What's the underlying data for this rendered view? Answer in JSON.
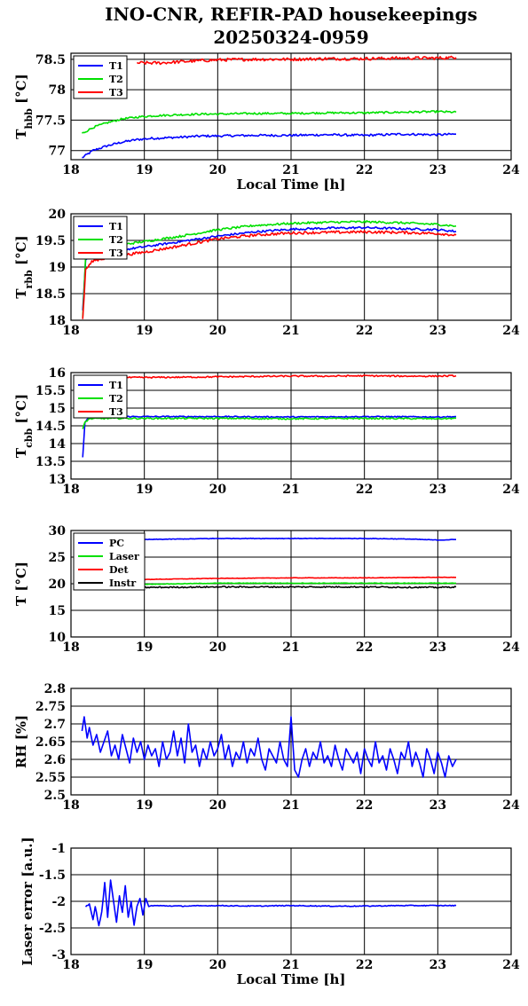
{
  "title": {
    "line1": "INO-CNR, REFIR-PAD housekeepings",
    "line2": "20250324-0959"
  },
  "chart_data": [
    {
      "type": "line",
      "id": "hbb",
      "ylabel_main": "T",
      "ylabel_sub": "hbb",
      "ylabel_unit": " [°C]",
      "xlabel": "Local Time [h]",
      "xlim": [
        18,
        24
      ],
      "ylim": [
        76.85,
        78.6
      ],
      "xticks": [
        "18",
        "19",
        "20",
        "21",
        "22",
        "23",
        "24"
      ],
      "yticks": [
        {
          "v": 77,
          "label": "77"
        },
        {
          "v": 77.5,
          "label": "77.5"
        },
        {
          "v": 78,
          "label": "78"
        },
        {
          "v": 78.5,
          "label": "78.5"
        }
      ],
      "grid": true,
      "legend": "top-left",
      "series": [
        {
          "name": "T1",
          "color": "#0000ff",
          "x": [
            18.15,
            18.3,
            18.5,
            18.7,
            18.9,
            19.1,
            19.3,
            19.5,
            19.8,
            20.0,
            20.5,
            21.0,
            21.5,
            22.0,
            22.5,
            23.0,
            23.25
          ],
          "y": [
            76.88,
            77.0,
            77.08,
            77.14,
            77.18,
            77.2,
            77.21,
            77.22,
            77.24,
            77.24,
            77.25,
            77.25,
            77.26,
            77.25,
            77.27,
            77.26,
            77.27
          ],
          "noise": 0.018
        },
        {
          "name": "T2",
          "color": "#00e000",
          "x": [
            18.15,
            18.3,
            18.5,
            18.7,
            18.9,
            19.1,
            19.3,
            19.5,
            19.8,
            20.0,
            20.5,
            21.0,
            21.5,
            22.0,
            22.5,
            23.0,
            23.25
          ],
          "y": [
            77.28,
            77.38,
            77.46,
            77.52,
            77.55,
            77.57,
            77.58,
            77.59,
            77.6,
            77.6,
            77.61,
            77.61,
            77.62,
            77.62,
            77.63,
            77.64,
            77.63
          ],
          "noise": 0.016
        },
        {
          "name": "T3",
          "color": "#ff0000",
          "x": [
            18.9,
            19.2,
            19.5,
            19.8,
            20.0,
            20.5,
            21.0,
            21.5,
            22.0,
            22.5,
            23.0,
            23.25
          ],
          "y": [
            78.44,
            78.44,
            78.46,
            78.48,
            78.49,
            78.5,
            78.5,
            78.51,
            78.51,
            78.52,
            78.52,
            78.53
          ],
          "noise": 0.025
        }
      ]
    },
    {
      "type": "line",
      "id": "rbb",
      "ylabel_main": "T",
      "ylabel_sub": "rbb",
      "ylabel_unit": " [°C]",
      "xlabel": "",
      "xlim": [
        18,
        24
      ],
      "ylim": [
        18,
        20
      ],
      "xticks": [
        "18",
        "19",
        "20",
        "21",
        "22",
        "23",
        "24"
      ],
      "yticks": [
        {
          "v": 18,
          "label": "18"
        },
        {
          "v": 18.5,
          "label": "18.5"
        },
        {
          "v": 19,
          "label": "19"
        },
        {
          "v": 19.5,
          "label": "19.5"
        },
        {
          "v": 20,
          "label": "20"
        }
      ],
      "grid": true,
      "legend": "top-left",
      "series": [
        {
          "name": "T1",
          "color": "#0000ff",
          "x": [
            18.16,
            18.2,
            18.3,
            18.6,
            19.0,
            19.5,
            20.0,
            20.5,
            21.0,
            21.5,
            22.0,
            22.5,
            23.0,
            23.25
          ],
          "y": [
            18.2,
            19.15,
            19.25,
            19.3,
            19.38,
            19.48,
            19.58,
            19.66,
            19.71,
            19.73,
            19.74,
            19.72,
            19.7,
            19.67
          ],
          "noise": 0.02
        },
        {
          "name": "T2",
          "color": "#00e000",
          "x": [
            18.16,
            18.2,
            18.3,
            18.6,
            19.0,
            19.5,
            20.0,
            20.5,
            21.0,
            21.5,
            22.0,
            22.5,
            23.0,
            23.25
          ],
          "y": [
            18.05,
            19.2,
            19.32,
            19.4,
            19.48,
            19.58,
            19.7,
            19.78,
            19.82,
            19.84,
            19.85,
            19.83,
            19.8,
            19.77
          ],
          "noise": 0.02
        },
        {
          "name": "T3",
          "color": "#ff0000",
          "x": [
            18.16,
            18.2,
            18.3,
            18.6,
            19.0,
            19.5,
            20.0,
            20.5,
            21.0,
            21.5,
            22.0,
            22.5,
            23.0,
            23.25
          ],
          "y": [
            18.0,
            18.95,
            19.12,
            19.2,
            19.28,
            19.4,
            19.53,
            19.6,
            19.64,
            19.65,
            19.66,
            19.65,
            19.63,
            19.6
          ],
          "noise": 0.025
        }
      ]
    },
    {
      "type": "line",
      "id": "cbb",
      "ylabel_main": "T",
      "ylabel_sub": "cbb",
      "ylabel_unit": " [°C]",
      "xlabel": "",
      "xlim": [
        18,
        24
      ],
      "ylim": [
        13,
        16
      ],
      "xticks": [
        "18",
        "19",
        "20",
        "21",
        "22",
        "23",
        "24"
      ],
      "yticks": [
        {
          "v": 13,
          "label": "13"
        },
        {
          "v": 13.5,
          "label": "13.5"
        },
        {
          "v": 14,
          "label": "14"
        },
        {
          "v": 14.5,
          "label": "14.5"
        },
        {
          "v": 15,
          "label": "15"
        },
        {
          "v": 15.5,
          "label": "15.5"
        },
        {
          "v": 16,
          "label": "16"
        }
      ],
      "grid": true,
      "legend": "top-left",
      "series": [
        {
          "name": "T1",
          "color": "#0000ff",
          "x": [
            18.16,
            18.19,
            18.25,
            18.5,
            19.0,
            20.0,
            21.0,
            22.0,
            23.0,
            23.25
          ],
          "y": [
            13.6,
            14.6,
            14.75,
            14.76,
            14.76,
            14.76,
            14.75,
            14.76,
            14.75,
            14.76
          ],
          "noise": 0.015
        },
        {
          "name": "T2",
          "color": "#00e000",
          "x": [
            18.16,
            18.19,
            18.25,
            18.5,
            19.0,
            20.0,
            21.0,
            22.0,
            23.0,
            23.25
          ],
          "y": [
            14.4,
            14.6,
            14.7,
            14.71,
            14.71,
            14.71,
            14.7,
            14.71,
            14.7,
            14.71
          ],
          "noise": 0.02
        },
        {
          "name": "T3",
          "color": "#ff0000",
          "x": [
            18.16,
            18.3,
            18.8,
            19.5,
            20.0,
            20.5,
            21.0,
            21.5,
            22.0,
            22.5,
            23.0,
            23.25
          ],
          "y": [
            15.9,
            15.86,
            15.86,
            15.87,
            15.88,
            15.89,
            15.9,
            15.9,
            15.91,
            15.9,
            15.9,
            15.91
          ],
          "noise": 0.02
        }
      ]
    },
    {
      "type": "line",
      "id": "temps",
      "ylabel_main": "T [°C]",
      "ylabel_sub": "",
      "ylabel_unit": "",
      "xlabel": "",
      "xlim": [
        18,
        24
      ],
      "ylim": [
        10,
        30
      ],
      "xticks": [
        "18",
        "19",
        "20",
        "21",
        "22",
        "23",
        "24"
      ],
      "yticks": [
        {
          "v": 10,
          "label": "10"
        },
        {
          "v": 15,
          "label": "15"
        },
        {
          "v": 20,
          "label": "20"
        },
        {
          "v": 25,
          "label": "25"
        },
        {
          "v": 30,
          "label": "30"
        }
      ],
      "grid": true,
      "legend": "top-left",
      "series": [
        {
          "name": "PC",
          "color": "#0000ff",
          "x": [
            18.2,
            19.0,
            20.0,
            21.0,
            22.0,
            22.6,
            23.0,
            23.25
          ],
          "y": [
            28.0,
            28.3,
            28.5,
            28.5,
            28.5,
            28.4,
            28.2,
            28.3
          ],
          "noise": 0.05
        },
        {
          "name": "Laser",
          "color": "#00e000",
          "x": [
            18.2,
            19.0,
            20.0,
            21.0,
            22.0,
            23.0,
            23.25
          ],
          "y": [
            19.8,
            19.9,
            20.1,
            20.1,
            20.1,
            20.1,
            20.1
          ],
          "noise": 0.05
        },
        {
          "name": "Det",
          "color": "#ff0000",
          "x": [
            18.2,
            19.0,
            20.0,
            21.0,
            22.0,
            23.0,
            23.25
          ],
          "y": [
            20.7,
            20.8,
            21.0,
            21.1,
            21.1,
            21.2,
            21.2
          ],
          "noise": 0.04
        },
        {
          "name": "Instr",
          "color": "#000000",
          "x": [
            18.2,
            19.0,
            20.0,
            21.0,
            22.0,
            23.0,
            23.25
          ],
          "y": [
            19.2,
            19.3,
            19.4,
            19.4,
            19.4,
            19.3,
            19.4
          ],
          "noise": 0.12
        }
      ]
    },
    {
      "type": "line",
      "id": "rh",
      "ylabel_main": "RH [%]",
      "ylabel_sub": "",
      "ylabel_unit": "",
      "xlabel": "",
      "xlim": [
        18,
        24
      ],
      "ylim": [
        2.5,
        2.8
      ],
      "xticks": [
        "18",
        "19",
        "20",
        "21",
        "22",
        "23",
        "24"
      ],
      "yticks": [
        {
          "v": 2.5,
          "label": "2.5"
        },
        {
          "v": 2.55,
          "label": "2.55"
        },
        {
          "v": 2.6,
          "label": "2.6"
        },
        {
          "v": 2.65,
          "label": "2.65"
        },
        {
          "v": 2.7,
          "label": "2.7"
        },
        {
          "v": 2.75,
          "label": "2.75"
        },
        {
          "v": 2.8,
          "label": "2.8"
        }
      ],
      "grid": true,
      "legend": "",
      "series": [
        {
          "name": "",
          "color": "#0000ff",
          "x": [
            18.15,
            18.18,
            18.22,
            18.25,
            18.3,
            18.35,
            18.4,
            18.45,
            18.5,
            18.55,
            18.6,
            18.65,
            18.7,
            18.75,
            18.8,
            18.85,
            18.9,
            18.95,
            19.0,
            19.05,
            19.1,
            19.15,
            19.2,
            19.25,
            19.3,
            19.35,
            19.4,
            19.45,
            19.5,
            19.55,
            19.6,
            19.65,
            19.7,
            19.75,
            19.8,
            19.85,
            19.9,
            19.95,
            20.0,
            20.05,
            20.1,
            20.15,
            20.2,
            20.25,
            20.3,
            20.35,
            20.4,
            20.45,
            20.5,
            20.55,
            20.6,
            20.65,
            20.7,
            20.75,
            20.8,
            20.85,
            20.9,
            20.95,
            21.0,
            21.05,
            21.1,
            21.15,
            21.2,
            21.25,
            21.3,
            21.35,
            21.4,
            21.45,
            21.5,
            21.55,
            21.6,
            21.65,
            21.7,
            21.75,
            21.8,
            21.85,
            21.9,
            21.95,
            22.0,
            22.05,
            22.1,
            22.15,
            22.2,
            22.25,
            22.3,
            22.35,
            22.4,
            22.45,
            22.5,
            22.55,
            22.6,
            22.65,
            22.7,
            22.75,
            22.8,
            22.85,
            22.9,
            22.95,
            23.0,
            23.05,
            23.1,
            23.15,
            23.2,
            23.25
          ],
          "y": [
            2.68,
            2.72,
            2.66,
            2.69,
            2.64,
            2.67,
            2.62,
            2.65,
            2.68,
            2.61,
            2.64,
            2.6,
            2.67,
            2.63,
            2.59,
            2.66,
            2.62,
            2.65,
            2.6,
            2.64,
            2.61,
            2.63,
            2.58,
            2.65,
            2.6,
            2.62,
            2.68,
            2.61,
            2.66,
            2.59,
            2.7,
            2.62,
            2.64,
            2.58,
            2.63,
            2.6,
            2.65,
            2.61,
            2.63,
            2.67,
            2.6,
            2.64,
            2.58,
            2.62,
            2.6,
            2.65,
            2.59,
            2.63,
            2.61,
            2.66,
            2.6,
            2.57,
            2.63,
            2.61,
            2.59,
            2.65,
            2.6,
            2.58,
            2.72,
            2.57,
            2.55,
            2.6,
            2.63,
            2.58,
            2.62,
            2.6,
            2.65,
            2.59,
            2.61,
            2.58,
            2.64,
            2.6,
            2.57,
            2.63,
            2.61,
            2.59,
            2.62,
            2.56,
            2.63,
            2.6,
            2.58,
            2.65,
            2.59,
            2.61,
            2.57,
            2.63,
            2.6,
            2.56,
            2.62,
            2.6,
            2.65,
            2.58,
            2.62,
            2.59,
            2.55,
            2.63,
            2.6,
            2.56,
            2.62,
            2.59,
            2.55,
            2.61,
            2.58,
            2.6
          ],
          "noise": 0
        }
      ]
    },
    {
      "type": "line",
      "id": "laser",
      "ylabel_main": "Laser error [a.u.]",
      "ylabel_sub": "",
      "ylabel_unit": "",
      "xlabel": "Local Time [h]",
      "xlim": [
        18,
        24
      ],
      "ylim": [
        -3,
        -1
      ],
      "xticks": [
        "18",
        "19",
        "20",
        "21",
        "22",
        "23",
        "24"
      ],
      "yticks": [
        {
          "v": -3,
          "label": "-3"
        },
        {
          "v": -2.5,
          "label": "-2.5"
        },
        {
          "v": -2,
          "label": "-2"
        },
        {
          "v": -1.5,
          "label": "-1.5"
        },
        {
          "v": -1,
          "label": "-1"
        }
      ],
      "grid": true,
      "legend": "",
      "series": [
        {
          "name": "",
          "color": "#0000ff",
          "x": [
            18.2,
            18.25,
            18.3,
            18.33,
            18.38,
            18.42,
            18.46,
            18.5,
            18.54,
            18.58,
            18.62,
            18.66,
            18.7,
            18.74,
            18.78,
            18.82,
            18.86,
            18.9,
            18.94,
            18.98,
            19.02,
            19.06,
            19.1,
            19.5,
            20.0,
            20.5,
            21.0,
            21.5,
            22.0,
            22.5,
            23.0,
            23.25
          ],
          "y": [
            -2.1,
            -2.05,
            -2.35,
            -2.1,
            -2.45,
            -2.2,
            -1.65,
            -2.3,
            -1.6,
            -2.0,
            -2.4,
            -1.9,
            -2.2,
            -1.7,
            -2.3,
            -2.0,
            -2.45,
            -2.1,
            -1.95,
            -2.25,
            -1.95,
            -2.1,
            -2.08,
            -2.09,
            -2.08,
            -2.09,
            -2.08,
            -2.09,
            -2.09,
            -2.08,
            -2.08,
            -2.08
          ],
          "noise": 0.008
        }
      ]
    }
  ]
}
